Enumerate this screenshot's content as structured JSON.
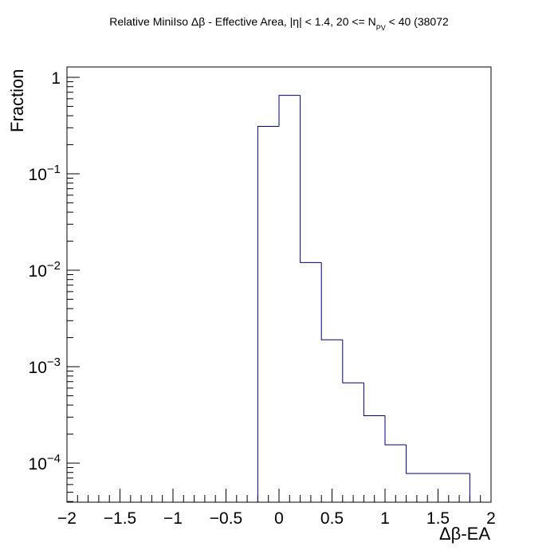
{
  "chart_data": {
    "type": "histogram",
    "title": {
      "part1": "Relative MiniIso Δβ - Effective Area, |η| < 1.4, 20 <= N",
      "subscript": "PV",
      "part2": " < 40 (38072"
    },
    "xlabel": "Δβ-EA",
    "ylabel": "Fraction",
    "xlim": [
      -2,
      2
    ],
    "ylim": [
      4e-05,
      1.3
    ],
    "yscale": "log",
    "grid": false,
    "line_color": "#000080",
    "x_ticks": [
      {
        "value": -2,
        "label": "−2"
      },
      {
        "value": -1.5,
        "label": "−1.5"
      },
      {
        "value": -1,
        "label": "−1"
      },
      {
        "value": -0.5,
        "label": "−0.5"
      },
      {
        "value": 0,
        "label": "0"
      },
      {
        "value": 0.5,
        "label": "0.5"
      },
      {
        "value": 1,
        "label": "1"
      },
      {
        "value": 1.5,
        "label": "1.5"
      },
      {
        "value": 2,
        "label": "2"
      }
    ],
    "y_ticks": [
      {
        "value": 1,
        "base": "1",
        "exp": ""
      },
      {
        "value": 0.1,
        "base": "10",
        "exp": "−1"
      },
      {
        "value": 0.01,
        "base": "10",
        "exp": "−2"
      },
      {
        "value": 0.001,
        "base": "10",
        "exp": "−3"
      },
      {
        "value": 0.0001,
        "base": "10",
        "exp": "−4"
      }
    ],
    "bins": [
      {
        "x0": -0.2,
        "x1": 0.0,
        "value": 0.31
      },
      {
        "x0": 0.0,
        "x1": 0.2,
        "value": 0.65
      },
      {
        "x0": 0.2,
        "x1": 0.4,
        "value": 0.012
      },
      {
        "x0": 0.4,
        "x1": 0.6,
        "value": 0.0019
      },
      {
        "x0": 0.6,
        "x1": 0.8,
        "value": 0.00068
      },
      {
        "x0": 0.8,
        "x1": 1.0,
        "value": 0.00031
      },
      {
        "x0": 1.0,
        "x1": 1.2,
        "value": 0.000155
      },
      {
        "x0": 1.2,
        "x1": 1.8,
        "value": 7.8e-05
      }
    ]
  }
}
